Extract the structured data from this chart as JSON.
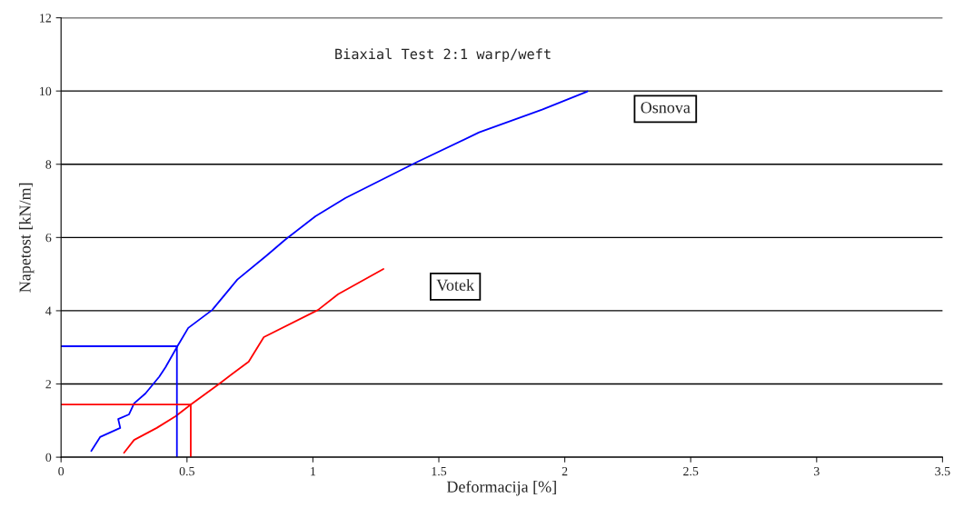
{
  "chart_data": {
    "type": "line",
    "title": "Biaxial Test 2:1 warp/weft",
    "xlabel": "Deformacija [%]",
    "ylabel": "Napetost [kN/m]",
    "xlim": [
      0,
      3.5
    ],
    "xticks": [
      0,
      0.5,
      1,
      1.5,
      2,
      2.5,
      3,
      3.5
    ],
    "ylim": [
      0,
      12
    ],
    "yticks": [
      0,
      2,
      4,
      6,
      8,
      10,
      12
    ],
    "grid": "y",
    "legend": false,
    "marker": "none",
    "line_style": "solid",
    "series": [
      {
        "name": "Osnova",
        "color": "#0000ff",
        "x": [
          0.12,
          0.155,
          0.235,
          0.227,
          0.27,
          0.29,
          0.335,
          0.39,
          0.415,
          0.462,
          0.505,
          0.6,
          0.7,
          0.815,
          0.89,
          1.01,
          1.13,
          1.41,
          1.66,
          1.91,
          2.09
        ],
        "values": [
          0.17,
          0.55,
          0.8,
          1.04,
          1.17,
          1.47,
          1.74,
          2.2,
          2.46,
          3.03,
          3.53,
          4.02,
          4.85,
          5.5,
          5.94,
          6.58,
          7.08,
          8.05,
          8.87,
          9.49,
          9.99
        ]
      },
      {
        "name": "Votek",
        "color": "#ff0000",
        "x": [
          0.25,
          0.29,
          0.38,
          0.455,
          0.516,
          0.625,
          0.745,
          0.805,
          1.02,
          1.1,
          1.28
        ],
        "values": [
          0.12,
          0.47,
          0.8,
          1.12,
          1.44,
          1.99,
          2.61,
          3.28,
          4.02,
          4.45,
          5.14
        ]
      },
      {
        "color": "#0000ff",
        "x": [
          0,
          0.46,
          0.46
        ],
        "values": [
          3.03,
          3.03,
          0
        ]
      },
      {
        "color": "#ff0000",
        "x": [
          0,
          0.515,
          0.515
        ],
        "values": [
          1.44,
          1.44,
          0
        ]
      }
    ]
  }
}
